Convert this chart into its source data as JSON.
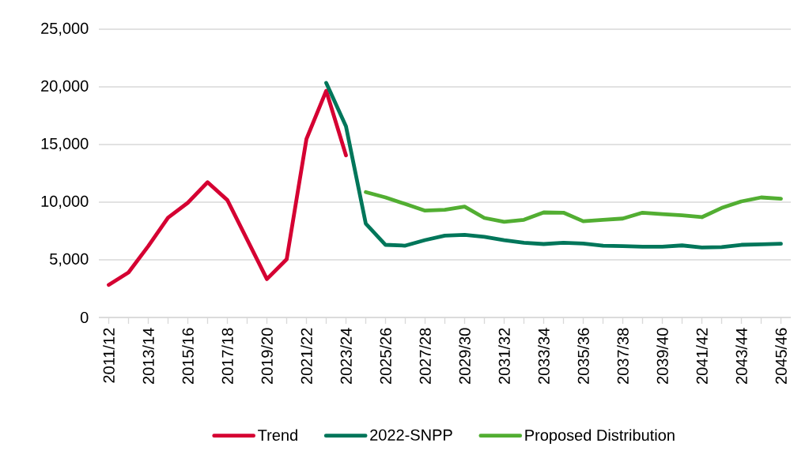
{
  "chart_data": {
    "type": "line",
    "categories": [
      "2011/12",
      null,
      "2013/14",
      null,
      "2015/16",
      null,
      "2017/18",
      null,
      "2019/20",
      null,
      "2021/22",
      null,
      "2023/24",
      null,
      "2025/26",
      null,
      "2027/28",
      null,
      "2029/30",
      null,
      "2031/32",
      null,
      "2033/34",
      null,
      "2035/36",
      null,
      "2037/38",
      null,
      "2039/40",
      null,
      "2041/42",
      null,
      "2043/44",
      null,
      "2045/46"
    ],
    "series": [
      {
        "name": "Trend",
        "color": "#d50032",
        "values": [
          2830,
          3900,
          6190,
          8650,
          9950,
          11730,
          10180,
          6760,
          3330,
          5050,
          15480,
          19660,
          14060,
          null,
          null,
          null,
          null,
          null,
          null,
          null,
          null,
          null,
          null,
          null,
          null,
          null,
          null,
          null,
          null,
          null,
          null,
          null,
          null,
          null,
          null
        ]
      },
      {
        "name": "2022-SNPP",
        "color": "#00765a",
        "values": [
          null,
          null,
          null,
          null,
          null,
          null,
          null,
          null,
          null,
          null,
          null,
          20340,
          16580,
          8150,
          6300,
          6230,
          6710,
          7100,
          7170,
          6990,
          6710,
          6480,
          6370,
          6480,
          6410,
          6230,
          6190,
          6140,
          6140,
          6250,
          6070,
          6110,
          6300,
          6350,
          6390
        ]
      },
      {
        "name": "Proposed Distribution",
        "color": "#52ae32",
        "values": [
          null,
          null,
          null,
          null,
          null,
          null,
          null,
          null,
          null,
          null,
          null,
          null,
          null,
          10870,
          10410,
          9840,
          9270,
          9340,
          9610,
          8630,
          8290,
          8470,
          9110,
          9090,
          8350,
          8470,
          8580,
          9090,
          8970,
          8860,
          8700,
          9500,
          10070,
          10410,
          10300
        ]
      }
    ],
    "ylim": [
      0,
      25000
    ],
    "yticks": [
      0,
      {
        "value": 5000,
        "label": "5,000"
      },
      {
        "value": 10000,
        "label": "10,000"
      },
      {
        "value": 15000,
        "label": "15,000"
      },
      {
        "value": 20000,
        "label": "20,000"
      },
      {
        "value": 25000,
        "label": "25,000"
      }
    ],
    "grid": "y",
    "legend": "bottom",
    "marker": "none",
    "line_style": "solid"
  }
}
